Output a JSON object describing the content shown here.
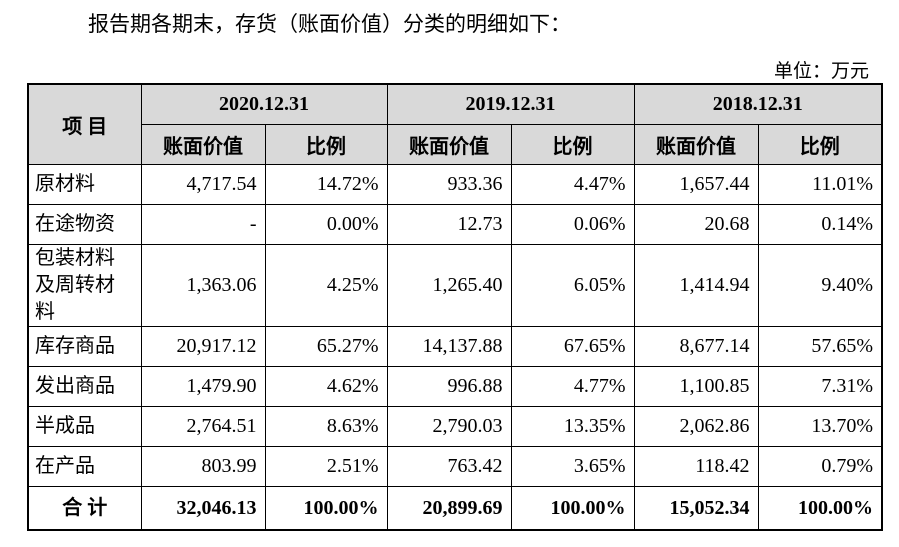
{
  "header": {
    "intro": "报告期各期末，存货（账面价值）分类的明细如下：",
    "unit": "单位：万元"
  },
  "table": {
    "item_header": "项 目",
    "periods": [
      "2020.12.31",
      "2019.12.31",
      "2018.12.31"
    ],
    "sub_headers": [
      "账面价值",
      "比例"
    ],
    "rows": [
      [
        "原材料",
        "4,717.54",
        "14.72%",
        "933.36",
        "4.47%",
        "1,657.44",
        "11.01%"
      ],
      [
        "在途物资",
        "-",
        "0.00%",
        "12.73",
        "0.06%",
        "20.68",
        "0.14%"
      ],
      [
        "包装材料及周转材料",
        "1,363.06",
        "4.25%",
        "1,265.40",
        "6.05%",
        "1,414.94",
        "9.40%"
      ],
      [
        "库存商品",
        "20,917.12",
        "65.27%",
        "14,137.88",
        "67.65%",
        "8,677.14",
        "57.65%"
      ],
      [
        "发出商品",
        "1,479.90",
        "4.62%",
        "996.88",
        "4.77%",
        "1,100.85",
        "7.31%"
      ],
      [
        "半成品",
        "2,764.51",
        "8.63%",
        "2,790.03",
        "13.35%",
        "2,062.86",
        "13.70%"
      ],
      [
        "在产品",
        "803.99",
        "2.51%",
        "763.42",
        "3.65%",
        "118.42",
        "0.79%"
      ]
    ],
    "total": [
      "合 计",
      "32,046.13",
      "100.00%",
      "20,899.69",
      "100.00%",
      "15,052.34",
      "100.00%"
    ]
  }
}
